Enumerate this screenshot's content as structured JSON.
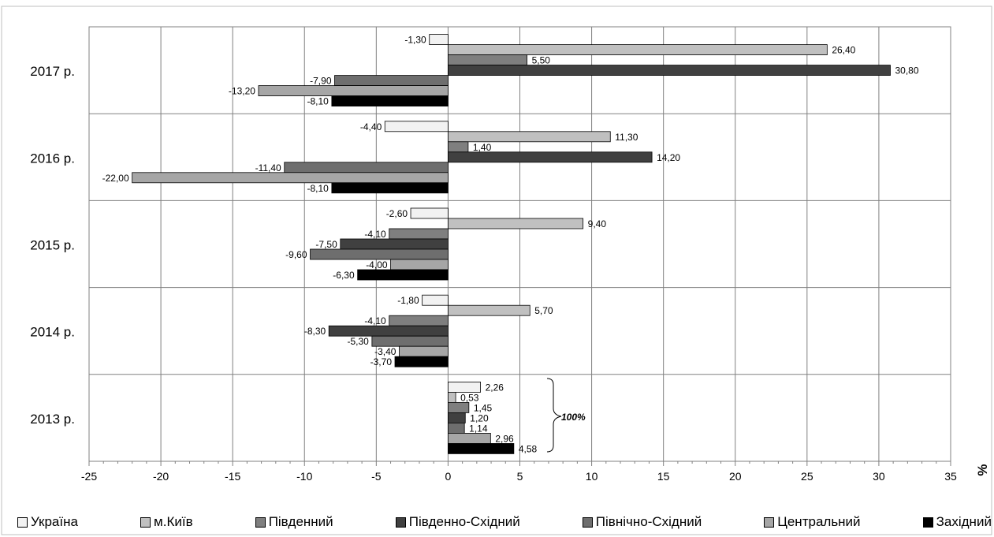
{
  "chart_data": {
    "type": "bar",
    "orientation": "horizontal",
    "categories": [
      "2017 р.",
      "2016 р.",
      "2015 р.",
      "2014 р.",
      "2013 р."
    ],
    "series": [
      {
        "name": "Україна",
        "color": "#f2f2f2",
        "values": [
          -1.3,
          -4.4,
          -2.6,
          -1.8,
          2.26
        ],
        "labels": [
          "-1,30",
          "-4,40",
          "-2,60",
          "-1,80",
          "2,26"
        ]
      },
      {
        "name": "м.Київ",
        "color": "#c0c0c0",
        "values": [
          26.4,
          11.3,
          9.4,
          5.7,
          0.53
        ],
        "labels": [
          "26,40",
          "11,30",
          "9,40",
          "5,70",
          "0,53"
        ]
      },
      {
        "name": "Південний",
        "color": "#7f7f7f",
        "values": [
          5.5,
          1.4,
          -4.1,
          -4.1,
          1.45
        ],
        "labels": [
          "5,50",
          "1,40",
          "-4,10",
          "-4,10",
          "1,45"
        ]
      },
      {
        "name": "Південно-Східний",
        "color": "#404040",
        "values": [
          30.8,
          14.2,
          -7.5,
          -8.3,
          1.2
        ],
        "labels": [
          "30,80",
          "14,20",
          "-7,50",
          "-8,30",
          "1,20"
        ]
      },
      {
        "name": "Північно-Східний",
        "color": "#6e6e6e",
        "values": [
          -7.9,
          -11.4,
          -9.6,
          -5.3,
          1.14
        ],
        "labels": [
          "-7,90",
          "-11,40",
          "-9,60",
          "-5,30",
          "1,14"
        ]
      },
      {
        "name": "Центральний",
        "color": "#a6a6a6",
        "values": [
          -13.2,
          -22.0,
          -4.0,
          -3.4,
          2.96
        ],
        "labels": [
          "-13,20",
          "-22,00",
          "-4,00",
          "-3,40",
          "2,96"
        ]
      },
      {
        "name": "Західний",
        "color": "#000000",
        "values": [
          -8.1,
          -8.1,
          -6.3,
          -3.7,
          4.58
        ],
        "labels": [
          "-8,10",
          "-8,10",
          "-6,30",
          "-3,70",
          "4,58"
        ]
      }
    ],
    "xlim": [
      -25,
      35
    ],
    "xticks": [
      -25,
      -20,
      -15,
      -10,
      -5,
      0,
      5,
      10,
      15,
      20,
      25,
      30,
      35
    ],
    "xlabel": "%",
    "annotation": "100%",
    "grid": true,
    "legend_position": "bottom"
  }
}
